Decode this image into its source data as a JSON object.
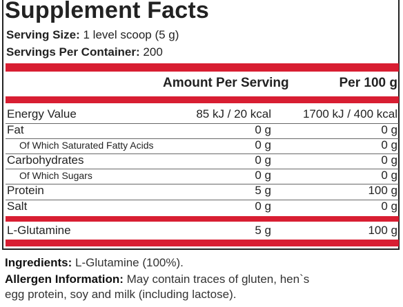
{
  "title": "Supplement Facts",
  "serving_size": {
    "label": "Serving Size:",
    "value": "1 level scoop (5 g)"
  },
  "servings_per_container": {
    "label": "Servings Per Container:",
    "value": "200"
  },
  "columns": {
    "per_serving": "Amount Per Serving",
    "per_100g": "Per 100 g"
  },
  "rows": [
    {
      "label": "Energy Value",
      "per_serving": "85 kJ / 20 kcal",
      "per_100g": "1700 kJ / 400 kcal"
    },
    {
      "label": "Fat",
      "per_serving": "0 g",
      "per_100g": "0 g"
    },
    {
      "label": "Of Which Saturated Fatty Acids",
      "per_serving": "0 g",
      "per_100g": "0 g"
    },
    {
      "label": "Carbohydrates",
      "per_serving": "0 g",
      "per_100g": "0 g"
    },
    {
      "label": "Of Which Sugars",
      "per_serving": "0 g",
      "per_100g": "0 g"
    },
    {
      "label": "Protein",
      "per_serving": "5 g",
      "per_100g": "100 g"
    },
    {
      "label": "Salt",
      "per_serving": "0 g",
      "per_100g": "0 g"
    },
    {
      "label": "L-Glutamine",
      "per_serving": "5 g",
      "per_100g": "100 g"
    }
  ],
  "ingredients": {
    "label": "Ingredients:",
    "value": "L-Glutamine (100%)."
  },
  "allergen": {
    "label": "Allergen Information:",
    "line1": "May contain traces of gluten, hen`s",
    "line2": "egg protein, soy and milk (including lactose)."
  },
  "colors": {
    "accent_red": "#d81e32",
    "text": "#222222"
  }
}
